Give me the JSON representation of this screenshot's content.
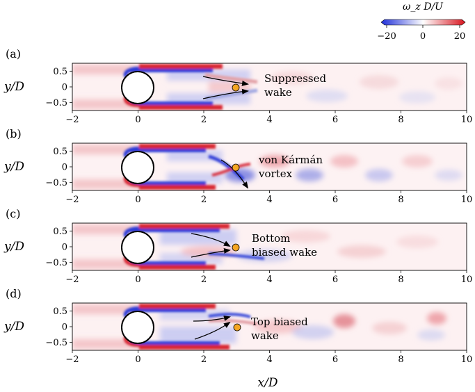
{
  "chart_data": {
    "type": "heatmap",
    "quantity": "vorticity",
    "colorbar": {
      "label": "ω_z D/U",
      "range": [
        -20,
        20
      ],
      "ticks": [
        -20,
        0,
        20
      ],
      "tick_labels": [
        "−20",
        "0",
        "20"
      ],
      "colors": {
        "negative": "#1f2fd8",
        "zero": "#ffffff",
        "positive": "#d8141e"
      }
    },
    "xlabel": "x/D",
    "ylabel": "y/D",
    "xlim": [
      -2,
      10
    ],
    "ylim": [
      -0.75,
      0.75
    ],
    "x_ticks": [
      -2,
      0,
      2,
      4,
      6,
      8,
      10
    ],
    "x_tick_labels": [
      "−2",
      "0",
      "2",
      "4",
      "6",
      "8",
      "10"
    ],
    "y_ticks": [
      0.5,
      0,
      -0.5
    ],
    "y_tick_labels": [
      "0.5",
      "0",
      "−0.5"
    ],
    "cylinder": {
      "center": [
        0,
        0
      ],
      "radius": 0.5
    },
    "probe": {
      "x": 3,
      "y": 0,
      "color": "#f5a623"
    },
    "panels": [
      {
        "id": "a",
        "label": "(a)",
        "annotation_lines": [
          "Suppressed",
          "wake"
        ],
        "annotation_pos": [
          3.9,
          0.25
        ]
      },
      {
        "id": "b",
        "label": "(b)",
        "annotation_lines": [
          "von Kármán",
          "vortex"
        ],
        "annotation_pos": [
          3.7,
          0.25
        ]
      },
      {
        "id": "c",
        "label": "(c)",
        "annotation_lines": [
          "Bottom",
          "biased wake"
        ],
        "annotation_pos": [
          3.5,
          0.25
        ]
      },
      {
        "id": "d",
        "label": "(d)",
        "annotation_lines": [
          "Top biased",
          "wake"
        ],
        "annotation_pos": [
          3.2,
          0.15
        ]
      }
    ]
  }
}
